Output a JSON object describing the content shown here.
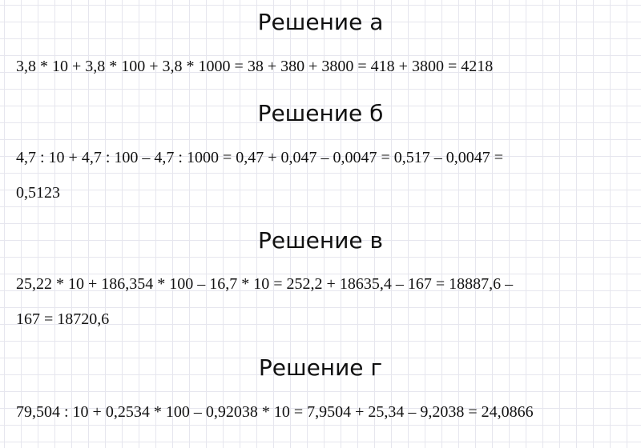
{
  "solutions": [
    {
      "title": "Решение а",
      "lines": [
        "3,8 * 10 + 3,8 * 100 + 3,8 * 1000 = 38 + 380 + 3800 = 418 + 3800 = 4218"
      ]
    },
    {
      "title": "Решение б",
      "lines": [
        "4,7 : 10 + 4,7 : 100 – 4,7 : 1000 = 0,47 + 0,047 – 0,0047 = 0,517 – 0,0047 =",
        "0,5123"
      ]
    },
    {
      "title": "Решение в",
      "lines": [
        "25,22 * 10 + 186,354 * 100 – 16,7 * 10 = 252,2 + 18635,4 – 167 = 18887,6 –",
        "167 = 18720,6"
      ]
    },
    {
      "title": "Решение г",
      "lines": [
        "79,504 : 10 + 0,2534 * 100 – 0,92038 * 10 = 7,9504 + 25,34 – 9,2038 = 24,0866"
      ]
    }
  ]
}
